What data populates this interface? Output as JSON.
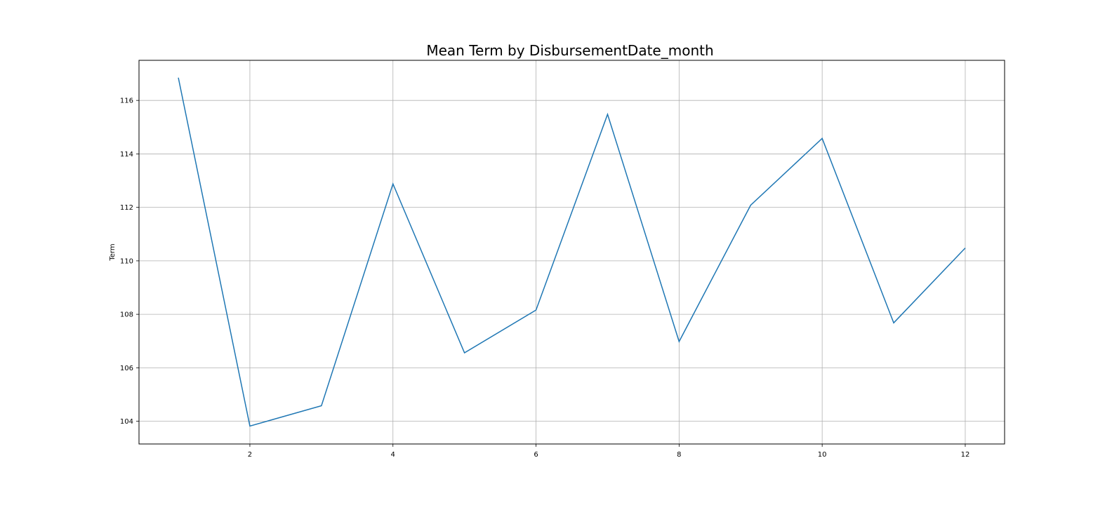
{
  "chart_data": {
    "type": "line",
    "title": "Mean Term by DisbursementDate_month",
    "xlabel": "",
    "ylabel": "Term",
    "x": [
      1,
      2,
      3,
      4,
      5,
      6,
      7,
      8,
      9,
      10,
      11,
      12
    ],
    "series": [
      {
        "values": [
          116.85,
          103.82,
          104.58,
          112.88,
          106.56,
          108.16,
          115.48,
          106.98,
          112.08,
          114.58,
          107.68,
          110.48
        ],
        "color": "#1f77b4"
      }
    ],
    "xlim": [
      0.45,
      12.55
    ],
    "ylim": [
      103.15,
      117.5
    ],
    "xticks": [
      2,
      4,
      6,
      8,
      10,
      12
    ],
    "yticks": [
      104,
      106,
      108,
      110,
      112,
      114,
      116
    ],
    "grid": true,
    "legend": "none"
  }
}
